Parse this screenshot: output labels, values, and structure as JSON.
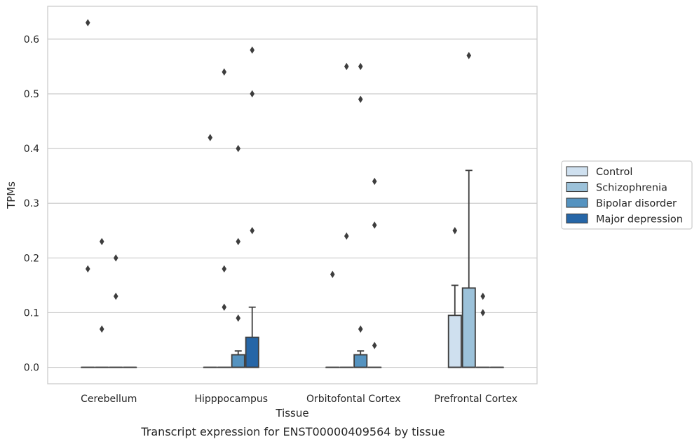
{
  "caption": "Transcript expression for ENST00000409564 by tissue",
  "chart_data": {
    "type": "box",
    "xlabel": "Tissue",
    "ylabel": "TPMs",
    "ylim": [
      -0.03,
      0.66
    ],
    "yticks": [
      0.0,
      0.1,
      0.2,
      0.3,
      0.4,
      0.5,
      0.6
    ],
    "ytick_labels": [
      "0.0",
      "0.1",
      "0.2",
      "0.3",
      "0.4",
      "0.5",
      "0.6"
    ],
    "grid": "horizontal",
    "legend_position": "right",
    "categories": [
      "Cerebellum",
      "Hipppocampus",
      "Orbitofontal Cortex",
      "Prefrontal Cortex"
    ],
    "series": [
      {
        "name": "Control",
        "color": "#cfe0ef",
        "boxes": [
          {
            "q1": 0,
            "median": 0,
            "q3": 0,
            "whisker_high": 0,
            "outliers": [
              0.63,
              0.18
            ]
          },
          {
            "q1": 0,
            "median": 0,
            "q3": 0,
            "whisker_high": 0,
            "outliers": [
              0.42
            ]
          },
          {
            "q1": 0,
            "median": 0,
            "q3": 0,
            "whisker_high": 0,
            "outliers": [
              0.17
            ]
          },
          {
            "q1": 0,
            "median": 0,
            "q3": 0.095,
            "whisker_high": 0.15,
            "outliers": [
              0.25
            ]
          }
        ]
      },
      {
        "name": "Schizophrenia",
        "color": "#9cc2da",
        "boxes": [
          {
            "q1": 0,
            "median": 0,
            "q3": 0,
            "whisker_high": 0,
            "outliers": [
              0.23,
              0.07
            ]
          },
          {
            "q1": 0,
            "median": 0,
            "q3": 0,
            "whisker_high": 0,
            "outliers": [
              0.54,
              0.18,
              0.11
            ]
          },
          {
            "q1": 0,
            "median": 0,
            "q3": 0,
            "whisker_high": 0,
            "outliers": [
              0.55,
              0.24
            ]
          },
          {
            "q1": 0,
            "median": 0,
            "q3": 0.145,
            "whisker_high": 0.36,
            "outliers": [
              0.57
            ]
          }
        ]
      },
      {
        "name": "Bipolar disorder",
        "color": "#5593c0",
        "boxes": [
          {
            "q1": 0,
            "median": 0,
            "q3": 0,
            "whisker_high": 0,
            "outliers": [
              0.2,
              0.13
            ]
          },
          {
            "q1": 0,
            "median": 0,
            "q3": 0.023,
            "whisker_high": 0.03,
            "outliers": [
              0.4,
              0.23,
              0.09
            ]
          },
          {
            "q1": 0,
            "median": 0,
            "q3": 0.023,
            "whisker_high": 0.03,
            "outliers": [
              0.55,
              0.49,
              0.07
            ]
          },
          {
            "q1": 0,
            "median": 0,
            "q3": 0,
            "whisker_high": 0,
            "outliers": [
              0.13,
              0.1
            ]
          }
        ]
      },
      {
        "name": "Major depression",
        "color": "#2666a7",
        "boxes": [
          {
            "q1": 0,
            "median": 0,
            "q3": 0,
            "whisker_high": 0,
            "outliers": []
          },
          {
            "q1": 0,
            "median": 0,
            "q3": 0.055,
            "whisker_high": 0.11,
            "outliers": [
              0.58,
              0.5,
              0.25
            ]
          },
          {
            "q1": 0,
            "median": 0,
            "q3": 0,
            "whisker_high": 0,
            "outliers": [
              0.34,
              0.26,
              0.04
            ]
          },
          {
            "q1": 0,
            "median": 0,
            "q3": 0,
            "whisker_high": 0,
            "outliers": []
          }
        ]
      }
    ]
  }
}
